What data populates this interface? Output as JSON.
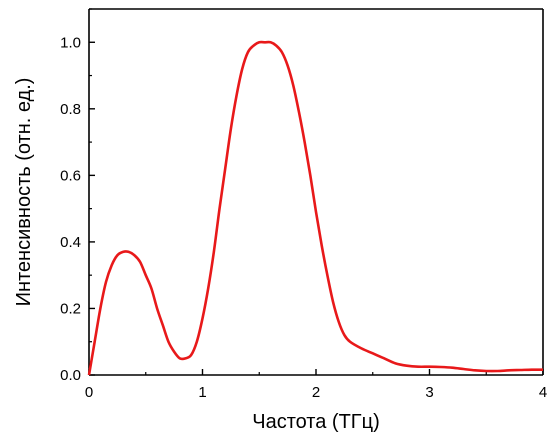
{
  "chart_data": {
    "type": "line",
    "title": "",
    "xlabel": "Частота (ТГц)",
    "ylabel": "Интенсивность (отн. ед.)",
    "xlim": [
      0,
      4
    ],
    "ylim": [
      0,
      1.1
    ],
    "grid": false,
    "legend": "none",
    "x_ticks": [
      0,
      1,
      2,
      3,
      4
    ],
    "x_tick_labels": [
      "0",
      "1",
      "2",
      "3",
      "4"
    ],
    "y_ticks": [
      0.0,
      0.2,
      0.4,
      0.6,
      0.8,
      1.0
    ],
    "y_tick_labels": [
      "0.0",
      "0.2",
      "0.4",
      "0.6",
      "0.8",
      "1.0"
    ],
    "series": [
      {
        "color": "#e8191a",
        "x": [
          0.0,
          0.05,
          0.1,
          0.15,
          0.2,
          0.25,
          0.3,
          0.35,
          0.4,
          0.45,
          0.5,
          0.55,
          0.6,
          0.65,
          0.7,
          0.75,
          0.8,
          0.85,
          0.9,
          0.95,
          1.0,
          1.05,
          1.1,
          1.15,
          1.2,
          1.25,
          1.3,
          1.35,
          1.4,
          1.45,
          1.5,
          1.55,
          1.6,
          1.65,
          1.7,
          1.75,
          1.8,
          1.85,
          1.9,
          1.95,
          2.0,
          2.05,
          2.1,
          2.15,
          2.2,
          2.25,
          2.3,
          2.4,
          2.5,
          2.6,
          2.7,
          2.8,
          2.9,
          3.0,
          3.1,
          3.2,
          3.3,
          3.4,
          3.5,
          3.6,
          3.7,
          3.8,
          3.9,
          4.0
        ],
        "y": [
          0.0,
          0.1,
          0.2,
          0.28,
          0.33,
          0.36,
          0.37,
          0.37,
          0.36,
          0.34,
          0.3,
          0.26,
          0.2,
          0.15,
          0.1,
          0.07,
          0.05,
          0.05,
          0.06,
          0.1,
          0.17,
          0.26,
          0.37,
          0.5,
          0.62,
          0.74,
          0.84,
          0.92,
          0.97,
          0.99,
          1.0,
          1.0,
          1.0,
          0.99,
          0.97,
          0.93,
          0.87,
          0.79,
          0.7,
          0.6,
          0.49,
          0.39,
          0.3,
          0.22,
          0.16,
          0.12,
          0.1,
          0.08,
          0.065,
          0.05,
          0.035,
          0.028,
          0.025,
          0.025,
          0.024,
          0.022,
          0.018,
          0.014,
          0.012,
          0.012,
          0.014,
          0.015,
          0.016,
          0.016
        ]
      }
    ]
  }
}
